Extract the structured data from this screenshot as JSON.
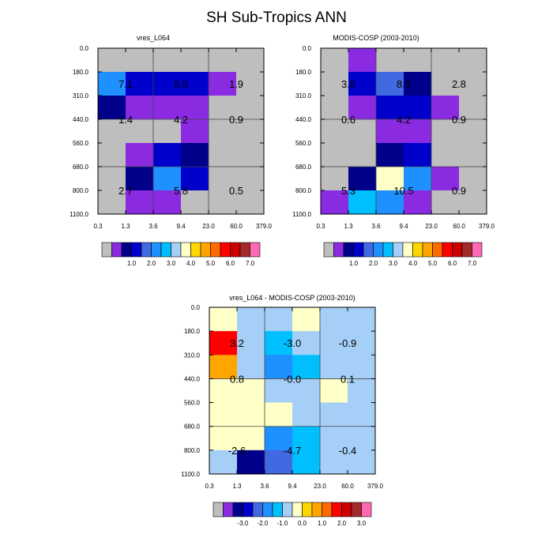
{
  "figure_title": "SH Sub-Tropics ANN",
  "colors": {
    "grey": "#bebebe",
    "purple": "#8a2be2",
    "navy": "#00008b",
    "blue": "#0000cd",
    "royal": "#4169e1",
    "dodger": "#1e90ff",
    "deepsky": "#00bfff",
    "lightsky": "#a6cff7",
    "cream": "#ffffc8",
    "gold": "#ffd700",
    "orange": "#ffa500",
    "darkorange": "#ff6a00",
    "red": "#ff0000",
    "crimson": "#cd0000",
    "brown": "#a52a2a",
    "pink": "#ff69b4"
  },
  "chart_data": [
    {
      "type": "heatmap",
      "title": "vres_L064",
      "xlabels": [
        "0.3",
        "1.3",
        "3.6",
        "9.4",
        "23.0",
        "60.0",
        "379.0"
      ],
      "ylabels": [
        "0.0",
        "180.0",
        "310.0",
        "440.0",
        "560.0",
        "680.0",
        "800.0",
        "1100.0"
      ],
      "cells": [
        [
          "grey",
          "grey",
          "grey",
          "grey",
          "grey",
          "grey"
        ],
        [
          "dodger",
          "blue",
          "blue",
          "blue",
          "purple",
          "grey"
        ],
        [
          "navy",
          "purple",
          "purple",
          "purple",
          "grey",
          "grey"
        ],
        [
          "grey",
          "grey",
          "grey",
          "purple",
          "grey",
          "grey"
        ],
        [
          "grey",
          "purple",
          "blue",
          "navy",
          "grey",
          "grey"
        ],
        [
          "grey",
          "navy",
          "dodger",
          "blue",
          "grey",
          "grey"
        ],
        [
          "grey",
          "purple",
          "purple",
          "grey",
          "grey",
          "grey"
        ]
      ],
      "values": [
        "7.1",
        "5.5",
        "1.9",
        "1.4",
        "4.2",
        "0.9",
        "2.7",
        "5.8",
        "0.5"
      ],
      "colorbar_labels": [
        "1.0",
        "2.0",
        "3.0",
        "4.0",
        "5.0",
        "6.0",
        "7.0"
      ]
    },
    {
      "type": "heatmap",
      "title": "MODIS-COSP (2003-2010)",
      "xlabels": [
        "0.3",
        "1.3",
        "3.6",
        "9.4",
        "23.0",
        "60.0",
        "379.0"
      ],
      "ylabels": [
        "0.0",
        "180.0",
        "310.0",
        "440.0",
        "560.0",
        "680.0",
        "800.0",
        "1100.0"
      ],
      "cells": [
        [
          "grey",
          "purple",
          "grey",
          "grey",
          "grey",
          "grey"
        ],
        [
          "grey",
          "blue",
          "royal",
          "navy",
          "grey",
          "grey"
        ],
        [
          "grey",
          "purple",
          "blue",
          "blue",
          "purple",
          "grey"
        ],
        [
          "grey",
          "grey",
          "purple",
          "purple",
          "grey",
          "grey"
        ],
        [
          "grey",
          "grey",
          "navy",
          "blue",
          "grey",
          "grey"
        ],
        [
          "grey",
          "navy",
          "cream",
          "dodger",
          "purple",
          "grey"
        ],
        [
          "purple",
          "deepsky",
          "dodger",
          "purple",
          "grey",
          "grey"
        ]
      ],
      "values": [
        "3.8",
        "8.5",
        "2.8",
        "0.6",
        "4.2",
        "0.9",
        "5.3",
        "10.5",
        "0.9"
      ],
      "colorbar_labels": [
        "1.0",
        "2.0",
        "3.0",
        "4.0",
        "5.0",
        "6.0",
        "7.0"
      ]
    },
    {
      "type": "heatmap",
      "title": "vres_L064 - MODIS-COSP (2003-2010)",
      "xlabels": [
        "0.3",
        "1.3",
        "3.6",
        "9.4",
        "23.0",
        "60.0",
        "379.0"
      ],
      "ylabels": [
        "0.0",
        "180.0",
        "310.0",
        "440.0",
        "560.0",
        "680.0",
        "800.0",
        "1100.0"
      ],
      "cells": [
        [
          "cream",
          "lightsky",
          "lightsky",
          "cream",
          "lightsky",
          "lightsky"
        ],
        [
          "red",
          "lightsky",
          "deepsky",
          "lightsky",
          "lightsky",
          "lightsky"
        ],
        [
          "orange",
          "lightsky",
          "dodger",
          "deepsky",
          "lightsky",
          "lightsky"
        ],
        [
          "cream",
          "cream",
          "lightsky",
          "lightsky",
          "cream",
          "lightsky"
        ],
        [
          "cream",
          "cream",
          "cream",
          "lightsky",
          "lightsky",
          "lightsky"
        ],
        [
          "cream",
          "cream",
          "dodger",
          "deepsky",
          "lightsky",
          "lightsky"
        ],
        [
          "lightsky",
          "navy",
          "royal",
          "deepsky",
          "lightsky",
          "lightsky"
        ]
      ],
      "values": [
        "3.2",
        "-3.0",
        "-0.9",
        "0.8",
        "-0.0",
        "0.1",
        "-2.6",
        "-4.7",
        "-0.4"
      ],
      "colorbar_labels": [
        "-3.0",
        "-2.0",
        "-1.0",
        "0.0",
        "1.0",
        "2.0",
        "3.0"
      ]
    }
  ],
  "colorbar_colors": [
    "grey",
    "purple",
    "navy",
    "blue",
    "royal",
    "dodger",
    "deepsky",
    "lightsky",
    "cream",
    "gold",
    "orange",
    "darkorange",
    "red",
    "crimson",
    "brown",
    "pink"
  ]
}
